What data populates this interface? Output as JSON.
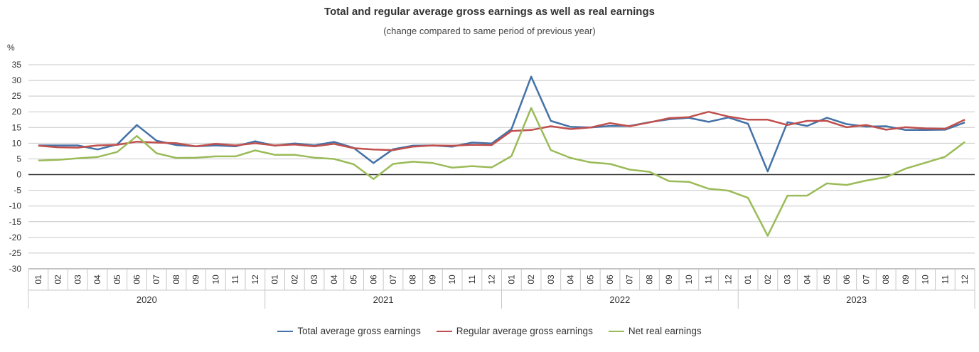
{
  "chart_data": {
    "type": "line",
    "title": "Total and regular average gross earnings as well as real earnings",
    "subtitle": "(change compared to same period of previous year)",
    "ylabel": "%",
    "ylim": [
      -30,
      35
    ],
    "yticks": [
      35,
      30,
      25,
      20,
      15,
      10,
      5,
      0,
      -5,
      -10,
      -15,
      -20,
      -25,
      -30
    ],
    "grid": true,
    "legend_position": "bottom",
    "years": [
      "2020",
      "2021",
      "2022",
      "2023"
    ],
    "months": [
      "01",
      "02",
      "03",
      "04",
      "05",
      "06",
      "07",
      "08",
      "09",
      "10",
      "11",
      "12"
    ],
    "series": [
      {
        "name": "Total average gross earnings",
        "color": "#4572a7",
        "values": [
          9.3,
          9.3,
          9.3,
          8.0,
          9.6,
          15.8,
          10.8,
          9.4,
          9.0,
          9.3,
          9.0,
          10.6,
          9.2,
          9.9,
          9.3,
          10.4,
          8.5,
          3.7,
          8.1,
          9.2,
          9.3,
          8.9,
          10.2,
          9.9,
          14.5,
          31.2,
          17.1,
          15.2,
          15.0,
          15.5,
          15.5,
          16.7,
          17.6,
          18.1,
          16.8,
          18.2,
          16.2,
          1.0,
          16.7,
          15.5,
          18.1,
          16.1,
          15.3,
          15.4,
          14.2,
          14.2,
          14.3,
          16.6
        ]
      },
      {
        "name": "Regular average gross earnings",
        "color": "#c0504d",
        "values": [
          9.2,
          8.7,
          8.6,
          9.3,
          9.5,
          10.5,
          10.2,
          10.0,
          9.0,
          9.8,
          9.3,
          10.0,
          9.3,
          9.6,
          9.0,
          9.8,
          8.4,
          8.0,
          7.8,
          8.9,
          9.3,
          9.2,
          9.5,
          9.4,
          13.9,
          14.2,
          15.4,
          14.5,
          15.0,
          16.4,
          15.4,
          16.6,
          18.0,
          18.3,
          20.0,
          18.5,
          17.5,
          17.5,
          15.8,
          17.1,
          17.1,
          15.1,
          15.8,
          14.3,
          15.1,
          14.7,
          14.6,
          17.5
        ]
      },
      {
        "name": "Net real earnings",
        "color": "#9bbb59",
        "values": [
          4.5,
          4.7,
          5.2,
          5.6,
          7.2,
          12.3,
          6.8,
          5.3,
          5.4,
          5.8,
          5.8,
          7.7,
          6.3,
          6.3,
          5.4,
          5.0,
          3.3,
          -1.4,
          3.4,
          4.1,
          3.7,
          2.2,
          2.7,
          2.3,
          5.9,
          21.2,
          7.8,
          5.3,
          3.9,
          3.4,
          1.6,
          0.9,
          -2.1,
          -2.3,
          -4.5,
          -5.1,
          -7.4,
          -19.5,
          -6.7,
          -6.7,
          -2.8,
          -3.3,
          -1.9,
          -0.8,
          1.9,
          3.8,
          5.7,
          10.4
        ]
      }
    ]
  }
}
